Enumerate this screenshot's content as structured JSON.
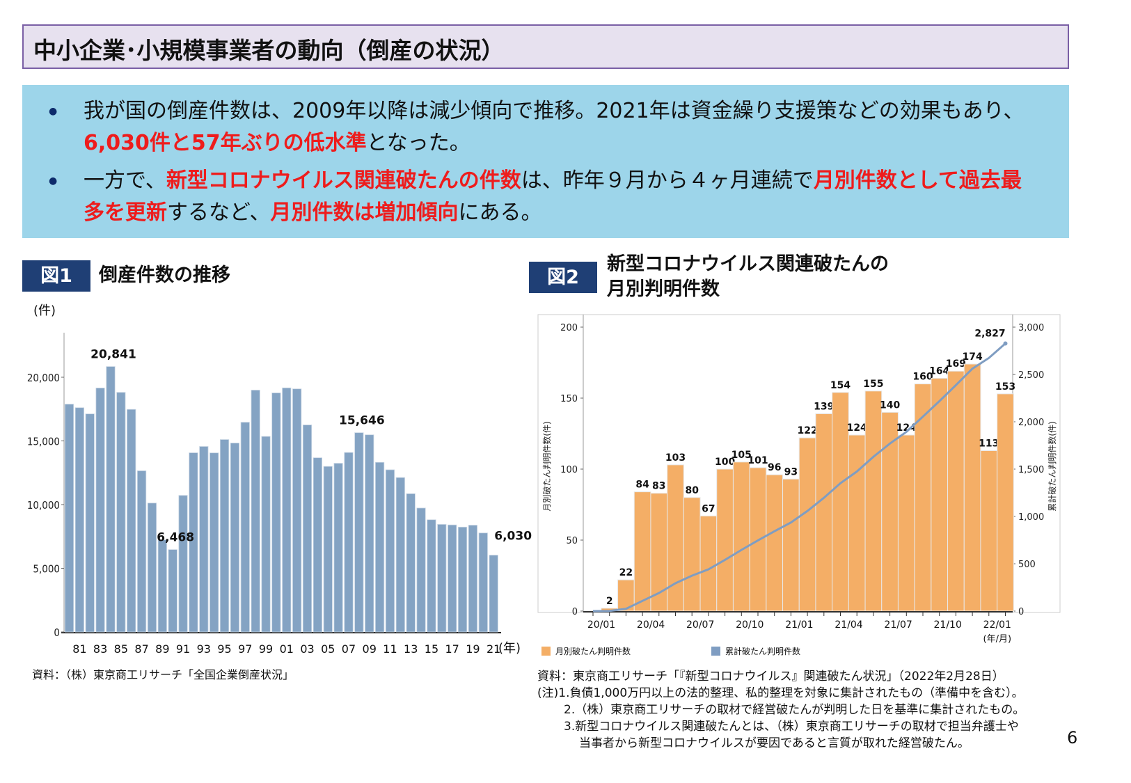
{
  "header": {
    "title": "中小企業･小規模事業者の動向（倒産の状況）"
  },
  "summary": {
    "bullets": [
      {
        "segments": [
          {
            "text": "我が国の倒産件数は、2009年以降は減少傾向で推移。2021年は資金繰り支援策などの効果もあり、",
            "emphasis": false
          },
          {
            "text": "6,030件と57年ぶりの低水準",
            "emphasis": true
          },
          {
            "text": "となった。",
            "emphasis": false
          }
        ]
      },
      {
        "segments": [
          {
            "text": "一方で、",
            "emphasis": false
          },
          {
            "text": "新型コロナウイルス関連破たんの件数",
            "emphasis": true
          },
          {
            "text": "は、昨年９月から４ヶ月連続で",
            "emphasis": false
          },
          {
            "text": "月別件数として過去最多を更新",
            "emphasis": true
          },
          {
            "text": "するなど、",
            "emphasis": false
          },
          {
            "text": "月別件数は増加傾向",
            "emphasis": true
          },
          {
            "text": "にある。",
            "emphasis": false
          }
        ]
      }
    ]
  },
  "fig1": {
    "tag": "図1",
    "title": "倒産件数の推移",
    "source": "資料：（株）東京商工リサーチ「全国企業倒産状況」"
  },
  "fig2": {
    "tag": "図2",
    "title_line1": "新型コロナウイルス関連破たんの",
    "title_line2": "月別判明件数",
    "source": "資料：東京商工リサーチ「『新型コロナウイルス』関連破たん状況」（2022年2月28日）",
    "notes": [
      "(注)1.負債1,000万円以上の法的整理、私的整理を対象に集計されたもの（準備中を含む）。",
      "2.（株）東京商工リサーチの取材で経営破たんが判明した日を基準に集計されたもの。",
      "3.新型コロナウイルス関連破たんとは、（株）東京商工リサーチの取材で担当弁護士や",
      "当事者から新型コロナウイルスが要因であると言質が取れた経営破たん。"
    ]
  },
  "page_number": "6",
  "chart_data": [
    {
      "type": "bar",
      "ylabel": "(件)",
      "xlabel": "(年)",
      "ylim": [
        0,
        23000
      ],
      "yticks": [
        0,
        5000,
        10000,
        15000,
        20000
      ],
      "ytick_labels": [
        "0",
        "5,000",
        "10,000",
        "15,000",
        "20,000"
      ],
      "x": [
        1980,
        1981,
        1982,
        1983,
        1984,
        1985,
        1986,
        1987,
        1988,
        1989,
        1990,
        1991,
        1992,
        1993,
        1994,
        1995,
        1996,
        1997,
        1998,
        1999,
        2000,
        2001,
        2002,
        2003,
        2004,
        2005,
        2006,
        2007,
        2008,
        2009,
        2010,
        2011,
        2012,
        2013,
        2014,
        2015,
        2016,
        2017,
        2018,
        2019,
        2020,
        2021
      ],
      "xtick_labels": [
        "81",
        "83",
        "85",
        "87",
        "89",
        "91",
        "93",
        "95",
        "97",
        "99",
        "01",
        "03",
        "05",
        "07",
        "09",
        "11",
        "13",
        "15",
        "17",
        "19",
        "21"
      ],
      "values": [
        17884,
        17610,
        17122,
        19155,
        20841,
        18812,
        17476,
        12655,
        10122,
        7234,
        6468,
        10723,
        14069,
        14564,
        14061,
        15108,
        14834,
        16464,
        18988,
        15352,
        18769,
        19164,
        19087,
        16255,
        13679,
        12998,
        13245,
        14091,
        15646,
        15480,
        13321,
        12734,
        12124,
        10855,
        9731,
        8812,
        8446,
        8405,
        8235,
        8383,
        7773,
        6030
      ],
      "data_labels": [
        {
          "x": 1984,
          "label": "20,841"
        },
        {
          "x": 1990,
          "label": "6,468"
        },
        {
          "x": 2008,
          "label": "15,646"
        },
        {
          "x": 2021,
          "label": "6,030"
        }
      ],
      "color": "#84a3c3",
      "grid": false
    },
    {
      "type": "bar+line",
      "xlabel": "(年/月)",
      "ylabel_left": "月別破たん判明件数(件)",
      "ylabel_right": "累計破たん判明件数(件)",
      "ylim_left": [
        0,
        200
      ],
      "ylim_right": [
        0,
        3000
      ],
      "yticks_left": [
        "0",
        "50",
        "100",
        "150",
        "200"
      ],
      "yticks_right": [
        "0",
        "500",
        "1,000",
        "1,500",
        "2,000",
        "2,500",
        "3,000"
      ],
      "categories": [
        "20/01",
        "20/02",
        "20/03",
        "20/04",
        "20/05",
        "20/06",
        "20/07",
        "20/08",
        "20/09",
        "20/10",
        "20/11",
        "20/12",
        "21/01",
        "21/02",
        "21/03",
        "21/04",
        "21/05",
        "21/06",
        "21/07",
        "21/08",
        "21/09",
        "21/10",
        "21/11",
        "21/12",
        "22/01",
        "22/02"
      ],
      "xtick_labels": [
        "20/01",
        "20/04",
        "20/07",
        "20/10",
        "21/01",
        "21/04",
        "21/07",
        "21/10",
        "22/01"
      ],
      "series": [
        {
          "name": "月別破たん判明件数",
          "type": "bar",
          "color": "#f4ae66",
          "values": [
            null,
            2,
            22,
            84,
            83,
            103,
            80,
            67,
            100,
            105,
            101,
            96,
            93,
            122,
            139,
            154,
            124,
            155,
            140,
            124,
            160,
            164,
            169,
            174,
            113,
            153
          ]
        },
        {
          "name": "累計破たん判明件数",
          "type": "line",
          "color": "#7f9dc2",
          "values": [
            0,
            2,
            24,
            108,
            191,
            294,
            374,
            441,
            541,
            646,
            747,
            843,
            936,
            1058,
            1197,
            1351,
            1475,
            1630,
            1770,
            1894,
            2054,
            2218,
            2387,
            2561,
            2674,
            2827
          ]
        }
      ],
      "end_label": "2,827",
      "grid": false,
      "legend": "bottom"
    }
  ]
}
